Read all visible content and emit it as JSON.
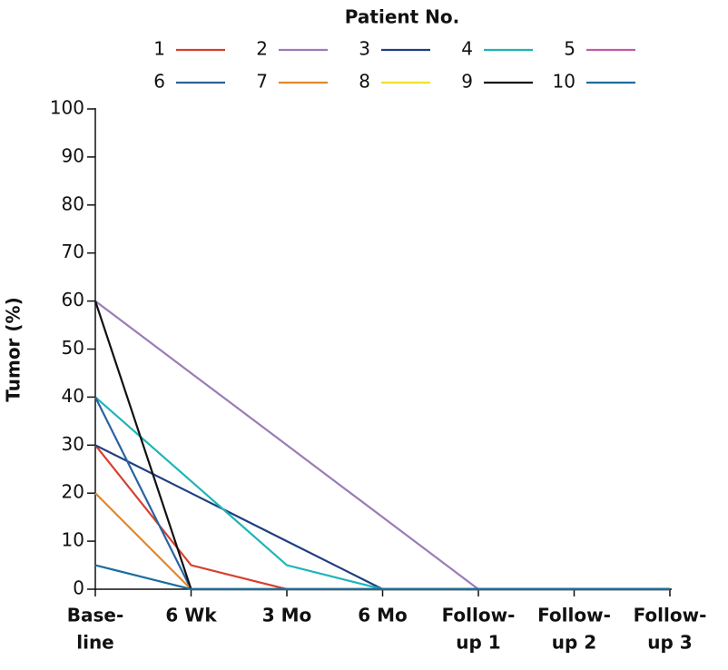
{
  "chart_data": {
    "type": "line",
    "legend_title": "Patient No.",
    "ylabel": "Tumor (%)",
    "categories": [
      [
        "Base-",
        "line"
      ],
      [
        "6 Wk"
      ],
      [
        "3 Mo"
      ],
      [
        "6 Mo"
      ],
      [
        "Follow-",
        "up 1"
      ],
      [
        "Follow-",
        "up 2"
      ],
      [
        "Follow-",
        "up 3"
      ]
    ],
    "ylim": [
      0,
      100
    ],
    "yticks": [
      0,
      10,
      20,
      30,
      40,
      50,
      60,
      70,
      80,
      90,
      100
    ],
    "series": [
      {
        "name": "1",
        "color": "#d6402e",
        "values": [
          30,
          5,
          0,
          0,
          0,
          0,
          0
        ]
      },
      {
        "name": "2",
        "color": "#9b7bb8",
        "values": [
          60,
          45,
          30,
          15,
          0,
          0,
          0
        ]
      },
      {
        "name": "3",
        "color": "#1f3f7f",
        "values": [
          30,
          20,
          10,
          0,
          0,
          0,
          0
        ]
      },
      {
        "name": "4",
        "color": "#1eb5b8",
        "values": [
          40,
          22.5,
          5,
          0,
          0,
          0,
          0
        ]
      },
      {
        "name": "5",
        "color": "#c45aa8",
        "values": [
          null,
          null,
          null,
          null,
          null,
          null,
          null
        ]
      },
      {
        "name": "6",
        "color": "#2a62a0",
        "values": [
          40,
          0,
          0,
          0,
          0,
          0,
          0
        ]
      },
      {
        "name": "7",
        "color": "#e0882e",
        "values": [
          20,
          0,
          0,
          0,
          0,
          0,
          0
        ]
      },
      {
        "name": "8",
        "color": "#f2e02a",
        "values": [
          null,
          null,
          null,
          null,
          null,
          null,
          null
        ]
      },
      {
        "name": "9",
        "color": "#111111",
        "values": [
          60,
          0,
          0,
          0,
          0,
          0,
          0
        ]
      },
      {
        "name": "10",
        "color": "#1a6e9e",
        "values": [
          5,
          0,
          0,
          0,
          0,
          0,
          0
        ]
      }
    ]
  }
}
